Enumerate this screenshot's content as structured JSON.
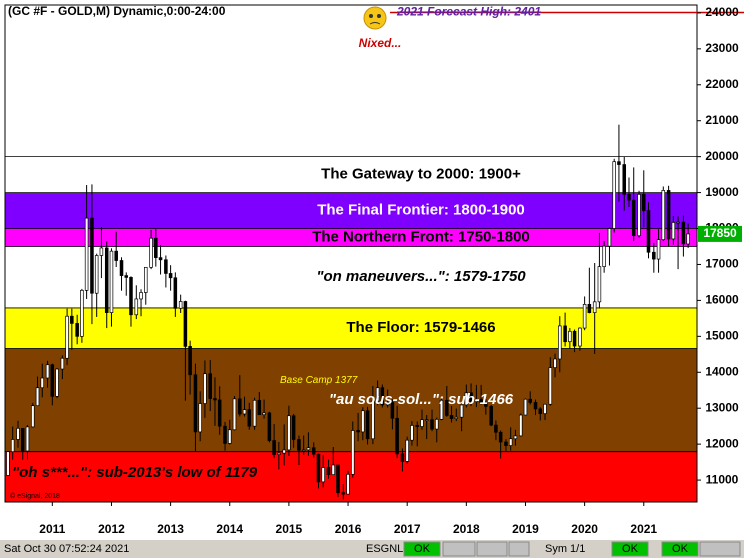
{
  "chart_data": {
    "type": "candlestick",
    "title": "(GC #F - GOLD,M) Dynamic,0:00-24:00",
    "xlim": [
      2010.2,
      2021.9
    ],
    "xticks": [
      2011,
      2012,
      2013,
      2014,
      2015,
      2016,
      2017,
      2018,
      2019,
      2020,
      2021
    ],
    "ylim": [
      10390,
      24220
    ],
    "yticks": [
      11000,
      12000,
      13000,
      14000,
      15000,
      16000,
      17000,
      18000,
      19000,
      20000,
      21000,
      22000,
      23000,
      24000
    ],
    "up_color": "#ffffff",
    "down_color": "#000000",
    "bands": [
      {
        "label": "The Gateway to 2000:  1900+",
        "from": 19000,
        "to": 20000,
        "color": "#ffffff",
        "text_color": "#000000"
      },
      {
        "label": "The Final Frontier:  1800-1900",
        "from": 18000,
        "to": 19000,
        "color": "#8000ff",
        "text_color": "#ffffff"
      },
      {
        "label": "The Northern Front:  1750-1800",
        "from": 17500,
        "to": 18000,
        "color": "#ff00ff",
        "text_color": "#000000"
      },
      {
        "label": "\"on maneuvers...\":  1579-1750",
        "from": 15790,
        "to": 17500,
        "color": "#ffffff",
        "text_color": "#000000"
      },
      {
        "label": "The Floor:  1579-1466",
        "from": 14660,
        "to": 15790,
        "color": "#ffff00",
        "text_color": "#000000"
      },
      {
        "label": "\"au sous-sol...\":  sub-1466",
        "from": 11790,
        "to": 14660,
        "color": "#804000",
        "text_color": "#ffffff"
      },
      {
        "label": "\"oh s***...\":  sub-2013's low of 1179",
        "from": 10390,
        "to": 11790,
        "color": "#ff0000",
        "text_color": "#000000"
      }
    ],
    "forecast": {
      "value": 24010,
      "label": "2021 Forecast High:  2401",
      "note": "Nixed...",
      "color": "#cc0000"
    },
    "base_camp": {
      "value": 13770,
      "label": "Base Camp 1377"
    },
    "copyright": "© eSignal, 2018",
    "last_price": {
      "value": 17850,
      "label": "17850",
      "color": "#00b000"
    },
    "x": [
      2010.25,
      2010.33,
      2010.42,
      2010.5,
      2010.58,
      2010.67,
      2010.75,
      2010.83,
      2010.92,
      2011,
      2011.08,
      2011.17,
      2011.25,
      2011.33,
      2011.42,
      2011.5,
      2011.58,
      2011.67,
      2011.75,
      2011.83,
      2011.92,
      2012,
      2012.08,
      2012.17,
      2012.25,
      2012.33,
      2012.42,
      2012.5,
      2012.58,
      2012.67,
      2012.75,
      2012.83,
      2012.92,
      2013,
      2013.08,
      2013.17,
      2013.25,
      2013.33,
      2013.42,
      2013.5,
      2013.58,
      2013.67,
      2013.75,
      2013.83,
      2013.92,
      2014,
      2014.08,
      2014.17,
      2014.25,
      2014.33,
      2014.42,
      2014.5,
      2014.58,
      2014.67,
      2014.75,
      2014.83,
      2014.92,
      2015,
      2015.08,
      2015.17,
      2015.25,
      2015.33,
      2015.42,
      2015.5,
      2015.58,
      2015.67,
      2015.75,
      2015.83,
      2015.92,
      2016,
      2016.08,
      2016.17,
      2016.25,
      2016.33,
      2016.42,
      2016.5,
      2016.58,
      2016.67,
      2016.75,
      2016.83,
      2016.92,
      2017,
      2017.08,
      2017.17,
      2017.25,
      2017.33,
      2017.42,
      2017.5,
      2017.58,
      2017.67,
      2017.75,
      2017.83,
      2017.92,
      2018,
      2018.08,
      2018.17,
      2018.25,
      2018.33,
      2018.42,
      2018.5,
      2018.58,
      2018.67,
      2018.75,
      2018.83,
      2018.92,
      2019,
      2019.08,
      2019.17,
      2019.25,
      2019.33,
      2019.42,
      2019.5,
      2019.58,
      2019.67,
      2019.75,
      2019.83,
      2019.92,
      2020,
      2020.08,
      2020.17,
      2020.25,
      2020.33,
      2020.42,
      2020.5,
      2020.58,
      2020.67,
      2020.75,
      2020.83,
      2020.92,
      2021,
      2021.08,
      2021.17,
      2021.25,
      2021.33,
      2021.42,
      2021.5,
      2021.58,
      2021.67,
      2021.75
    ],
    "candles": [
      [
        11130,
        11810,
        11130,
        11790
      ],
      [
        11790,
        12490,
        11570,
        12130
      ],
      [
        12130,
        12650,
        11900,
        12440
      ],
      [
        12440,
        12440,
        11570,
        11810
      ],
      [
        11810,
        12530,
        11570,
        12480
      ],
      [
        12480,
        13150,
        12460,
        13070
      ],
      [
        13070,
        13880,
        13070,
        13570
      ],
      [
        13570,
        14240,
        13300,
        13840
      ],
      [
        13840,
        14320,
        13570,
        14210
      ],
      [
        14210,
        14240,
        13080,
        13330
      ],
      [
        13330,
        14120,
        13280,
        14090
      ],
      [
        14090,
        14470,
        13810,
        14390
      ],
      [
        14390,
        15770,
        14200,
        15560
      ],
      [
        15560,
        15770,
        14620,
        15360
      ],
      [
        15360,
        15600,
        14780,
        15000
      ],
      [
        15000,
        16320,
        14820,
        16280
      ],
      [
        16280,
        19210,
        16040,
        18290
      ],
      [
        18290,
        19230,
        15340,
        16200
      ],
      [
        16200,
        17300,
        15540,
        17250
      ],
      [
        17250,
        18040,
        16620,
        17460
      ],
      [
        17460,
        17640,
        15230,
        15660
      ],
      [
        15660,
        17450,
        15270,
        17370
      ],
      [
        17370,
        17910,
        16930,
        17110
      ],
      [
        17110,
        17200,
        16270,
        16690
      ],
      [
        16690,
        16780,
        16130,
        16640
      ],
      [
        16640,
        16670,
        15270,
        15600
      ],
      [
        15600,
        16420,
        15480,
        16040
      ],
      [
        16040,
        16310,
        15560,
        16220
      ],
      [
        16220,
        16920,
        15880,
        16920
      ],
      [
        16920,
        17960,
        16870,
        17730
      ],
      [
        17730,
        17980,
        16940,
        17190
      ],
      [
        17190,
        17540,
        16720,
        17130
      ],
      [
        17130,
        17250,
        16360,
        16750
      ],
      [
        16750,
        16980,
        16270,
        16630
      ],
      [
        16630,
        16780,
        15540,
        15780
      ],
      [
        15780,
        16160,
        15650,
        15970
      ],
      [
        15970,
        15990,
        13210,
        14720
      ],
      [
        14720,
        14880,
        13380,
        13930
      ],
      [
        13930,
        14240,
        11800,
        12340
      ],
      [
        12340,
        13470,
        12080,
        13130
      ],
      [
        13130,
        14330,
        12730,
        13960
      ],
      [
        13960,
        14340,
        12920,
        13270
      ],
      [
        13270,
        13860,
        12510,
        13230
      ],
      [
        13230,
        13610,
        12260,
        12500
      ],
      [
        12500,
        12620,
        11820,
        12020
      ],
      [
        12020,
        12680,
        11990,
        12400
      ],
      [
        12400,
        13340,
        12380,
        13260
      ],
      [
        13260,
        13920,
        12770,
        12840
      ],
      [
        12840,
        13320,
        12770,
        12960
      ],
      [
        12960,
        13150,
        12400,
        12500
      ],
      [
        12500,
        13290,
        12400,
        13220
      ],
      [
        13220,
        13450,
        12820,
        12820
      ],
      [
        12820,
        13240,
        12710,
        12870
      ],
      [
        12870,
        12900,
        12050,
        12100
      ],
      [
        12100,
        12560,
        11610,
        11710
      ],
      [
        11710,
        12060,
        11300,
        11750
      ],
      [
        11750,
        12550,
        11410,
        11840
      ],
      [
        11840,
        13070,
        11670,
        12790
      ],
      [
        12790,
        12840,
        11900,
        12130
      ],
      [
        12130,
        12240,
        11420,
        11830
      ],
      [
        11830,
        12240,
        11700,
        11840
      ],
      [
        11840,
        12330,
        11680,
        11900
      ],
      [
        11900,
        12050,
        11620,
        11720
      ],
      [
        11720,
        11740,
        10770,
        10950
      ],
      [
        10950,
        11700,
        10800,
        11350
      ],
      [
        11350,
        11570,
        11040,
        11150
      ],
      [
        11150,
        11920,
        11140,
        11420
      ],
      [
        11420,
        11420,
        10530,
        10650
      ],
      [
        10650,
        10890,
        10460,
        10610
      ],
      [
        10610,
        11260,
        10600,
        11160
      ],
      [
        11160,
        12630,
        11070,
        12380
      ],
      [
        12380,
        12870,
        12080,
        12340
      ],
      [
        12340,
        13030,
        12110,
        12930
      ],
      [
        12930,
        13040,
        11990,
        12150
      ],
      [
        12150,
        13620,
        12000,
        13200
      ],
      [
        13200,
        13770,
        13080,
        13570
      ],
      [
        13570,
        13660,
        13020,
        13090
      ],
      [
        13090,
        13520,
        13020,
        13160
      ],
      [
        13160,
        13250,
        12410,
        12720
      ],
      [
        12720,
        13070,
        11610,
        11730
      ],
      [
        11730,
        11880,
        11240,
        11520
      ],
      [
        11520,
        12210,
        11460,
        12110
      ],
      [
        12110,
        12640,
        11960,
        12520
      ],
      [
        12520,
        12630,
        11940,
        12490
      ],
      [
        12490,
        12960,
        12400,
        12680
      ],
      [
        12680,
        12810,
        12140,
        12680
      ],
      [
        12680,
        12960,
        12360,
        12420
      ],
      [
        12420,
        12740,
        12050,
        12690
      ],
      [
        12690,
        13310,
        12670,
        13220
      ],
      [
        13220,
        13620,
        12760,
        12800
      ],
      [
        12800,
        13060,
        12600,
        12710
      ],
      [
        12710,
        12990,
        12640,
        12750
      ],
      [
        12750,
        13090,
        12360,
        13090
      ],
      [
        13090,
        13660,
        13020,
        13430
      ],
      [
        13430,
        13690,
        13060,
        13180
      ],
      [
        13180,
        13650,
        13030,
        13250
      ],
      [
        13250,
        13650,
        13100,
        13160
      ],
      [
        13160,
        13260,
        12820,
        13050
      ],
      [
        13050,
        13090,
        12500,
        12530
      ],
      [
        12530,
        12660,
        12110,
        12330
      ],
      [
        12330,
        12380,
        11600,
        12060
      ],
      [
        12060,
        12140,
        11800,
        11960
      ],
      [
        11960,
        12470,
        11820,
        12150
      ],
      [
        12150,
        12400,
        11960,
        12230
      ],
      [
        12230,
        12850,
        12210,
        12810
      ],
      [
        12810,
        13270,
        12800,
        13250
      ],
      [
        13250,
        13470,
        13100,
        13160
      ],
      [
        13160,
        13240,
        12810,
        12980
      ],
      [
        12980,
        13030,
        12660,
        12850
      ],
      [
        12850,
        13120,
        12670,
        13110
      ],
      [
        13110,
        14420,
        13070,
        14130
      ],
      [
        14130,
        14520,
        13860,
        14370
      ],
      [
        14370,
        15560,
        14000,
        15290
      ],
      [
        15290,
        15660,
        14720,
        14850
      ],
      [
        14850,
        15230,
        14650,
        15140
      ],
      [
        15140,
        15190,
        14560,
        14730
      ],
      [
        14730,
        15250,
        14600,
        15230
      ],
      [
        15230,
        16110,
        15170,
        15890
      ],
      [
        15890,
        16910,
        15640,
        15660
      ],
      [
        15660,
        17040,
        14510,
        15960
      ],
      [
        15960,
        17880,
        15780,
        16940
      ],
      [
        16940,
        17650,
        16770,
        17510
      ],
      [
        17510,
        18020,
        16970,
        18000
      ],
      [
        18000,
        19940,
        17890,
        19860
      ],
      [
        19860,
        20890,
        18750,
        19780
      ],
      [
        19780,
        20000,
        18500,
        18950
      ],
      [
        18950,
        19420,
        18600,
        18790
      ],
      [
        18790,
        19700,
        17650,
        17800
      ],
      [
        17800,
        19050,
        17750,
        18950
      ],
      [
        18950,
        19620,
        18040,
        18500
      ],
      [
        18500,
        18730,
        17170,
        17340
      ],
      [
        17340,
        17600,
        16770,
        17150
      ],
      [
        17150,
        17980,
        16770,
        17690
      ],
      [
        17690,
        19170,
        17650,
        19060
      ],
      [
        19060,
        19190,
        17500,
        17710
      ],
      [
        17710,
        18350,
        17550,
        18170
      ],
      [
        18170,
        18340,
        16870,
        18180
      ],
      [
        18180,
        18360,
        17220,
        17570
      ],
      [
        17570,
        18140,
        17460,
        17850
      ]
    ]
  },
  "status_bar": {
    "timestamp": "Sat Oct 30 07:52:24 2021",
    "feed": "ESGNL:",
    "ok1": "OK",
    "symbols": "Sym 1/1",
    "ok2": "OK",
    "ok3": "OK"
  }
}
